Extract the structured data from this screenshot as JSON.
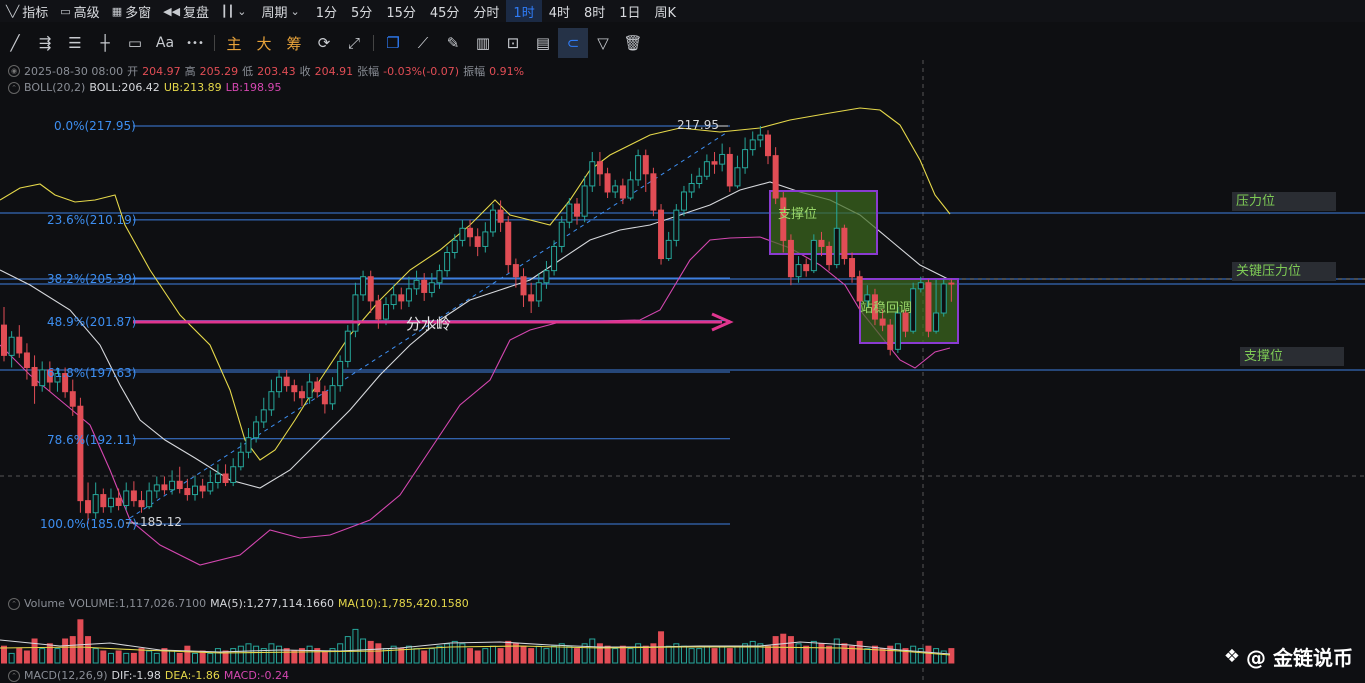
{
  "toolbar": {
    "indicators": "指标",
    "advanced": "高级",
    "multiwindow": "多窗",
    "replay": "复盘",
    "period": "周期",
    "intervals": [
      "1分",
      "5分",
      "15分",
      "45分",
      "分时",
      "1时",
      "4时",
      "8时",
      "1日",
      "周K"
    ],
    "active_interval": "1时"
  },
  "drawbar": {
    "main": "主",
    "big": "大",
    "chip": "筹",
    "text_tool": "Aa",
    "more": "•••"
  },
  "ohlc": {
    "datetime": "2025-08-30 08:00",
    "open_label": "开",
    "open": "204.97",
    "high_label": "高",
    "high": "205.29",
    "low_label": "低",
    "low": "203.43",
    "close_label": "收",
    "close": "204.91",
    "change_label": "张幅",
    "change": "-0.03%(-0.07)",
    "amp_label": "振幅",
    "amp": "0.91%"
  },
  "boll": {
    "name": "BOLL(20,2)",
    "boll": "BOLL:206.42",
    "ub": "UB:213.89",
    "lb": "LB:198.95"
  },
  "fib": [
    {
      "label": "0.0%(217.95)",
      "price": 217.95
    },
    {
      "label": "23.6%(210.19)",
      "price": 210.19
    },
    {
      "label": "38.2%(205.39)",
      "price": 205.39
    },
    {
      "label": "48.9%(201.87)",
      "price": 201.87
    },
    {
      "label": "61.8%(197.63)",
      "price": 197.63
    },
    {
      "label": "78.6%(192.11)",
      "price": 192.11
    },
    {
      "label": "100.0%(185.07)",
      "price": 185.07
    }
  ],
  "annotations": {
    "high_mark": "217.95",
    "low_mark": "185.12",
    "divider": "分水岭",
    "support_box": "支撑位",
    "consolidation_box": "站稳回调",
    "resistance": "压力位",
    "key_resistance": "关键压力位",
    "support": "支撑位"
  },
  "volume": {
    "name": "Volume",
    "value": "VOLUME:1,117,026.7100",
    "ma5": "MA(5):1,277,114.1660",
    "ma10": "MA(10):1,785,420.1580"
  },
  "macd": {
    "name": "MACD(12,26,9)",
    "dif": "DIF:-1.98",
    "dea": "DEA:-1.86",
    "macd": "MACD:-0.24"
  },
  "watermark": "@ 金链说币",
  "colors": {
    "up": "#26a69a",
    "down": "#e14d55",
    "fib_line": "#3d7fe0",
    "arrow": "#e0358f",
    "box_border": "#8a3bd1",
    "box_fill": "#3d6b1e"
  },
  "chart_data": {
    "type": "candlestick",
    "price_range": [
      183,
      222
    ],
    "candles": [
      [
        201.5,
        199.0,
        203.0,
        198.5
      ],
      [
        199.0,
        200.5,
        201.0,
        198.0
      ],
      [
        200.5,
        199.2,
        201.5,
        198.8
      ],
      [
        199.2,
        198.0,
        200.0,
        197.0
      ],
      [
        198.0,
        196.5,
        199.0,
        195.0
      ],
      [
        196.5,
        197.8,
        198.5,
        196.0
      ],
      [
        197.8,
        196.8,
        198.5,
        196.0
      ],
      [
        196.8,
        197.5,
        198.0,
        196.0
      ],
      [
        197.5,
        196.0,
        198.0,
        195.5
      ],
      [
        196.0,
        194.8,
        197.0,
        194.0
      ],
      [
        194.8,
        187.0,
        195.5,
        186.0
      ],
      [
        187.0,
        186.0,
        188.5,
        185.1
      ],
      [
        186.0,
        187.5,
        188.5,
        185.5
      ],
      [
        187.5,
        186.5,
        188.0,
        186.0
      ],
      [
        186.5,
        187.2,
        188.0,
        186.0
      ],
      [
        187.2,
        186.6,
        188.0,
        186.2
      ],
      [
        186.6,
        187.8,
        188.5,
        186.2
      ],
      [
        187.8,
        187.0,
        188.6,
        186.5
      ],
      [
        187.0,
        186.5,
        187.8,
        186.0
      ],
      [
        186.5,
        187.8,
        188.5,
        186.3
      ],
      [
        187.8,
        188.3,
        189.0,
        187.2
      ],
      [
        188.3,
        187.9,
        189.0,
        187.5
      ],
      [
        187.9,
        188.6,
        189.5,
        187.5
      ],
      [
        188.6,
        188.0,
        189.8,
        187.6
      ],
      [
        188.0,
        187.5,
        188.8,
        187.0
      ],
      [
        187.5,
        188.2,
        189.0,
        187.0
      ],
      [
        188.2,
        187.8,
        188.8,
        187.2
      ],
      [
        187.8,
        188.5,
        189.5,
        187.5
      ],
      [
        188.5,
        189.2,
        190.0,
        188.0
      ],
      [
        189.2,
        188.5,
        190.0,
        188.2
      ],
      [
        188.5,
        189.8,
        190.5,
        188.2
      ],
      [
        189.8,
        191.0,
        191.8,
        189.5
      ],
      [
        191.0,
        192.2,
        193.0,
        190.5
      ],
      [
        192.2,
        193.5,
        194.0,
        191.8
      ],
      [
        193.5,
        194.5,
        195.5,
        193.0
      ],
      [
        194.5,
        196.0,
        197.0,
        194.0
      ],
      [
        196.0,
        197.2,
        197.8,
        195.5
      ],
      [
        197.2,
        196.5,
        197.8,
        196.0
      ],
      [
        196.5,
        196.0,
        197.0,
        195.2
      ],
      [
        196.0,
        195.5,
        196.5,
        194.8
      ],
      [
        195.5,
        196.8,
        197.5,
        195.0
      ],
      [
        196.8,
        196.0,
        197.2,
        195.5
      ],
      [
        196.0,
        195.0,
        196.5,
        194.2
      ],
      [
        195.0,
        196.5,
        197.2,
        194.5
      ],
      [
        196.5,
        198.5,
        199.0,
        196.0
      ],
      [
        198.5,
        201.0,
        201.5,
        198.0
      ],
      [
        201.0,
        204.0,
        205.0,
        200.5
      ],
      [
        204.0,
        205.5,
        206.0,
        203.5
      ],
      [
        205.5,
        203.5,
        206.0,
        202.5
      ],
      [
        203.5,
        202.0,
        204.0,
        201.2
      ],
      [
        202.0,
        203.2,
        203.8,
        201.5
      ],
      [
        203.2,
        204.0,
        204.8,
        202.8
      ],
      [
        204.0,
        203.5,
        204.6,
        202.8
      ],
      [
        203.5,
        204.5,
        205.5,
        203.0
      ],
      [
        204.5,
        205.2,
        206.0,
        204.0
      ],
      [
        205.2,
        204.2,
        205.8,
        203.5
      ],
      [
        204.2,
        205.0,
        205.8,
        203.8
      ],
      [
        205.0,
        206.0,
        206.5,
        204.5
      ],
      [
        206.0,
        207.5,
        208.0,
        205.5
      ],
      [
        207.5,
        208.5,
        209.0,
        207.0
      ],
      [
        208.5,
        209.5,
        210.2,
        208.0
      ],
      [
        209.5,
        208.8,
        210.2,
        208.0
      ],
      [
        208.8,
        208.0,
        209.5,
        207.2
      ],
      [
        208.0,
        209.2,
        210.0,
        207.5
      ],
      [
        209.2,
        211.0,
        211.5,
        208.8
      ],
      [
        211.0,
        210.0,
        211.8,
        209.2
      ],
      [
        210.0,
        206.5,
        210.5,
        205.8
      ],
      [
        206.5,
        205.5,
        207.0,
        204.6
      ],
      [
        205.5,
        204.0,
        206.2,
        203.0
      ],
      [
        204.0,
        203.5,
        205.0,
        202.5
      ],
      [
        203.5,
        205.0,
        205.8,
        203.0
      ],
      [
        205.0,
        206.0,
        206.8,
        204.5
      ],
      [
        206.0,
        208.0,
        208.5,
        205.6
      ],
      [
        208.0,
        210.0,
        210.5,
        207.5
      ],
      [
        210.0,
        211.5,
        212.0,
        209.5
      ],
      [
        211.5,
        210.5,
        212.0,
        209.8
      ],
      [
        210.5,
        213.0,
        213.8,
        210.0
      ],
      [
        213.0,
        215.0,
        215.8,
        212.5
      ],
      [
        215.0,
        214.0,
        215.8,
        213.0
      ],
      [
        214.0,
        212.5,
        214.5,
        212.0
      ],
      [
        212.5,
        213.0,
        213.5,
        212.0
      ],
      [
        213.0,
        212.0,
        213.6,
        211.5
      ],
      [
        212.0,
        213.5,
        214.2,
        211.8
      ],
      [
        213.5,
        215.5,
        216.0,
        213.0
      ],
      [
        215.5,
        214.0,
        216.0,
        212.5
      ],
      [
        214.0,
        211.0,
        214.5,
        210.5
      ],
      [
        211.0,
        207.0,
        211.5,
        206.5
      ],
      [
        207.0,
        208.5,
        209.2,
        206.8
      ],
      [
        208.5,
        211.0,
        211.5,
        208.0
      ],
      [
        211.0,
        212.5,
        213.0,
        210.5
      ],
      [
        212.5,
        213.2,
        214.0,
        212.0
      ],
      [
        213.2,
        213.8,
        214.5,
        212.8
      ],
      [
        213.8,
        215.0,
        215.6,
        213.5
      ],
      [
        215.0,
        214.8,
        215.8,
        214.0
      ],
      [
        214.8,
        215.6,
        216.5,
        214.2
      ],
      [
        215.6,
        213.0,
        216.2,
        212.5
      ],
      [
        213.0,
        214.5,
        215.5,
        212.8
      ],
      [
        214.5,
        216.0,
        217.0,
        214.0
      ],
      [
        216.0,
        216.8,
        217.5,
        215.5
      ],
      [
        216.8,
        217.2,
        217.95,
        216.2
      ],
      [
        217.2,
        215.5,
        217.6,
        214.8
      ],
      [
        215.5,
        212.0,
        216.2,
        211.5
      ],
      [
        212.0,
        208.5,
        212.5,
        207.5
      ],
      [
        208.5,
        205.5,
        209.0,
        204.8
      ],
      [
        205.5,
        206.5,
        207.2,
        205.0
      ],
      [
        206.5,
        206.0,
        207.0,
        205.5
      ],
      [
        206.0,
        208.5,
        209.0,
        205.8
      ],
      [
        208.5,
        208.0,
        209.2,
        207.2
      ],
      [
        208.0,
        206.5,
        208.4,
        206.0
      ],
      [
        206.5,
        209.5,
        212.5,
        206.2
      ],
      [
        209.5,
        207.0,
        209.8,
        206.5
      ],
      [
        207.0,
        205.5,
        207.5,
        205.0
      ],
      [
        205.5,
        203.5,
        206.0,
        202.8
      ],
      [
        203.5,
        204.0,
        204.8,
        203.0
      ],
      [
        204.0,
        202.0,
        204.5,
        201.5
      ],
      [
        202.0,
        201.5,
        202.8,
        201.0
      ],
      [
        201.5,
        199.5,
        202.0,
        199.0
      ],
      [
        199.5,
        202.5,
        203.0,
        199.2
      ],
      [
        202.5,
        201.0,
        202.8,
        200.5
      ],
      [
        201.0,
        204.5,
        205.0,
        200.8
      ],
      [
        204.5,
        205.0,
        205.5,
        204.2
      ],
      [
        205.0,
        201.0,
        205.3,
        200.5
      ],
      [
        201.0,
        202.5,
        205.3,
        200.8
      ],
      [
        202.5,
        204.9,
        205.3,
        202.2
      ],
      [
        204.97,
        204.91,
        205.29,
        203.43
      ]
    ],
    "boll_ub": [
      [
        206.8,
        206.5,
        206.3,
        206.0,
        205.5,
        204.5,
        203.0,
        201.5,
        200.0,
        198.5,
        197.0,
        195.8,
        195.0,
        194.2,
        193.5,
        192.8,
        192.0,
        191.5,
        191.2,
        191.5,
        192.8,
        195.0,
        197.5,
        199.5,
        201.0,
        202.0,
        203.0,
        204.0,
        204.8,
        205.5,
        206.2,
        207.5,
        209.0,
        210.2,
        210.5,
        210.2,
        209.8,
        209.0,
        208.5,
        208.5,
        209.0,
        210.5,
        212.0,
        213.0,
        214.0,
        215.5,
        216.5,
        217.2,
        217.8,
        218.2,
        218.5,
        218.7,
        219.0,
        219.3,
        219.4,
        219.3,
        219.0,
        217.5,
        214.5,
        211.5,
        210.0,
        209.8
      ]
    ],
    "volume_range": [
      0,
      1
    ],
    "volumes": [
      0.35,
      0.2,
      0.3,
      0.25,
      0.5,
      0.3,
      0.4,
      0.3,
      0.5,
      0.55,
      0.9,
      0.55,
      0.3,
      0.25,
      0.2,
      0.25,
      0.2,
      0.2,
      0.3,
      0.25,
      0.2,
      0.3,
      0.25,
      0.2,
      0.35,
      0.2,
      0.25,
      0.2,
      0.3,
      0.25,
      0.3,
      0.35,
      0.4,
      0.35,
      0.3,
      0.4,
      0.35,
      0.3,
      0.25,
      0.3,
      0.35,
      0.3,
      0.25,
      0.3,
      0.4,
      0.55,
      0.7,
      0.5,
      0.45,
      0.4,
      0.3,
      0.35,
      0.3,
      0.35,
      0.3,
      0.25,
      0.3,
      0.35,
      0.4,
      0.45,
      0.4,
      0.3,
      0.25,
      0.3,
      0.35,
      0.3,
      0.45,
      0.4,
      0.35,
      0.3,
      0.35,
      0.3,
      0.35,
      0.4,
      0.35,
      0.3,
      0.4,
      0.5,
      0.4,
      0.35,
      0.3,
      0.35,
      0.3,
      0.4,
      0.35,
      0.4,
      0.65,
      0.35,
      0.4,
      0.35,
      0.3,
      0.3,
      0.35,
      0.3,
      0.35,
      0.3,
      0.35,
      0.4,
      0.45,
      0.4,
      0.35,
      0.55,
      0.6,
      0.55,
      0.4,
      0.35,
      0.45,
      0.4,
      0.35,
      0.5,
      0.4,
      0.35,
      0.45,
      0.3,
      0.35,
      0.3,
      0.35,
      0.4,
      0.3,
      0.35,
      0.3,
      0.35,
      0.3,
      0.25,
      0.3
    ]
  }
}
